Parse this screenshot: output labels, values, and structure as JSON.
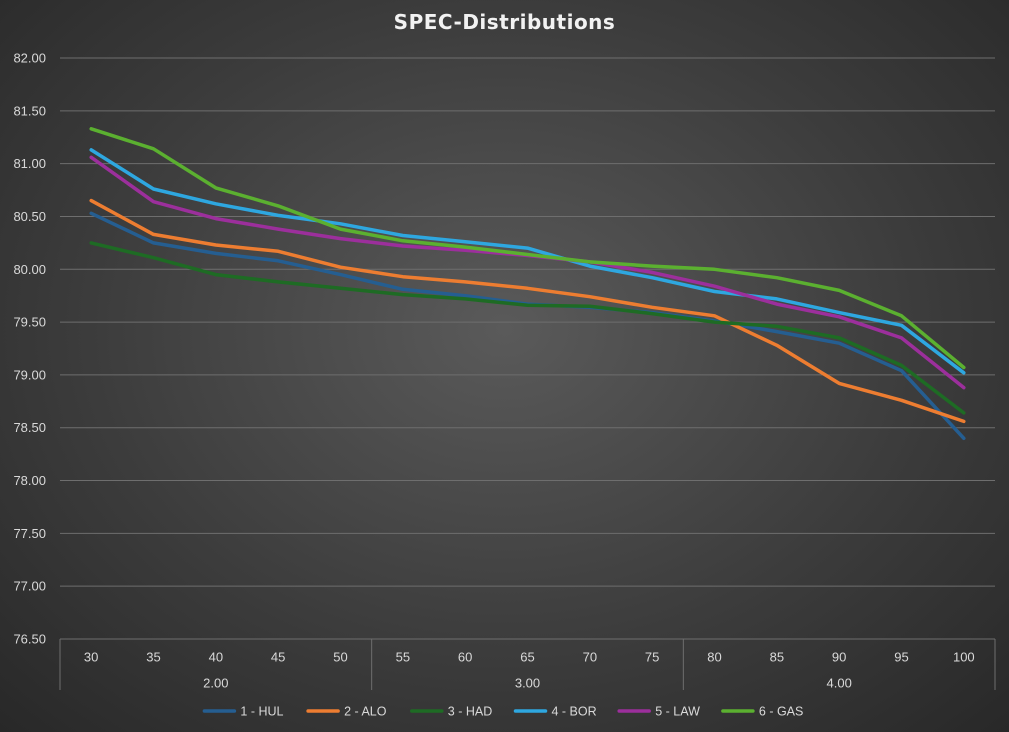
{
  "chart_data": {
    "type": "line",
    "title": "SPEC-Distributions",
    "xlabel": "",
    "ylabel": "",
    "ylim": [
      76.5,
      82.0
    ],
    "y_ticks": [
      "76.50",
      "77.00",
      "77.50",
      "78.00",
      "78.50",
      "79.00",
      "79.50",
      "80.00",
      "80.50",
      "81.00",
      "81.50",
      "82.00"
    ],
    "categories": [
      "30",
      "35",
      "40",
      "45",
      "50",
      "55",
      "60",
      "65",
      "70",
      "75",
      "80",
      "85",
      "90",
      "95",
      "100"
    ],
    "category_groups": [
      {
        "label": "2.00",
        "categories": [
          "30",
          "35",
          "40",
          "45",
          "50"
        ]
      },
      {
        "label": "3.00",
        "categories": [
          "55",
          "60",
          "65",
          "70",
          "75"
        ]
      },
      {
        "label": "4.00",
        "categories": [
          "80",
          "85",
          "90",
          "95",
          "100"
        ]
      }
    ],
    "grid": true,
    "legend_position": "bottom",
    "series": [
      {
        "name": "1 - HUL",
        "color": "#255e91",
        "values": [
          80.53,
          80.25,
          80.15,
          80.08,
          79.95,
          79.81,
          79.75,
          79.67,
          79.64,
          79.59,
          79.51,
          79.41,
          79.3,
          79.04,
          78.4
        ]
      },
      {
        "name": "2 - ALO",
        "color": "#ed7d31",
        "values": [
          80.65,
          80.33,
          80.23,
          80.17,
          80.02,
          79.93,
          79.88,
          79.82,
          79.74,
          79.64,
          79.56,
          79.28,
          78.92,
          78.76,
          78.56
        ]
      },
      {
        "name": "3 - HAD",
        "color": "#1e6b24",
        "values": [
          80.25,
          80.11,
          79.95,
          79.88,
          79.82,
          79.76,
          79.72,
          79.66,
          79.65,
          79.58,
          79.5,
          79.46,
          79.35,
          79.09,
          78.64
        ]
      },
      {
        "name": "4 - BOR",
        "color": "#2ea7e0",
        "values": [
          81.13,
          80.76,
          80.62,
          80.51,
          80.43,
          80.32,
          80.26,
          80.2,
          80.03,
          79.92,
          79.79,
          79.72,
          79.59,
          79.47,
          79.02
        ]
      },
      {
        "name": "5 - LAW",
        "color": "#9c2f9c",
        "values": [
          81.06,
          80.64,
          80.48,
          80.38,
          80.29,
          80.22,
          80.18,
          80.13,
          80.07,
          79.97,
          79.84,
          79.67,
          79.55,
          79.35,
          78.88
        ]
      },
      {
        "name": "6 - GAS",
        "color": "#5bb030",
        "values": [
          81.33,
          81.14,
          80.77,
          80.6,
          80.38,
          80.27,
          80.21,
          80.14,
          80.07,
          80.03,
          80.0,
          79.92,
          79.8,
          79.56,
          79.07
        ]
      }
    ]
  }
}
